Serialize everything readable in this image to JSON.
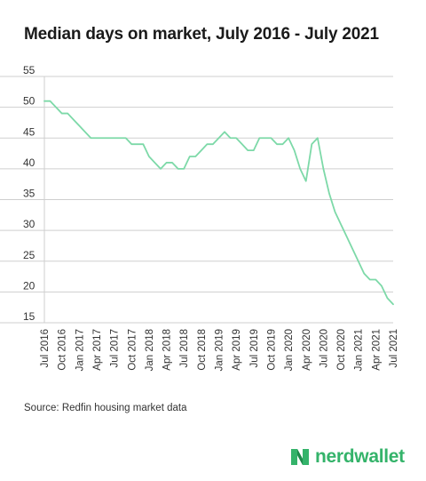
{
  "title": "Median days on market, July 2016 - July 2021",
  "source": "Source: Redfin housing market data",
  "brand": {
    "name": "nerdwallet",
    "color": "#34b36a"
  },
  "colors": {
    "line": "#7dd9a8",
    "grid": "#cfcfcf",
    "axis": "#333333"
  },
  "chart_data": {
    "type": "line",
    "title": "Median days on market, July 2016 - July 2021",
    "xlabel": "",
    "ylabel": "",
    "ylim": [
      15,
      55
    ],
    "y_ticks": [
      55,
      50,
      45,
      40,
      35,
      30,
      25,
      20,
      15
    ],
    "grid": true,
    "x_tick_labels": [
      "Jul 2016",
      "Oct 2016",
      "Jan 2017",
      "Apr 2017",
      "Jul 2017",
      "Oct 2017",
      "Jan 2018",
      "Apr 2018",
      "Jul 2018",
      "Oct 2018",
      "Jan 2019",
      "Apr 2019",
      "Jul 2019",
      "Oct 2019",
      "Jan 2020",
      "Apr 2020",
      "Jul 2020",
      "Oct 2020",
      "Jan 2021",
      "Apr 2021",
      "Jul 2021"
    ],
    "x": [
      "Jul 2016",
      "Aug 2016",
      "Sep 2016",
      "Oct 2016",
      "Nov 2016",
      "Dec 2016",
      "Jan 2017",
      "Feb 2017",
      "Mar 2017",
      "Apr 2017",
      "May 2017",
      "Jun 2017",
      "Jul 2017",
      "Aug 2017",
      "Sep 2017",
      "Oct 2017",
      "Nov 2017",
      "Dec 2017",
      "Jan 2018",
      "Feb 2018",
      "Mar 2018",
      "Apr 2018",
      "May 2018",
      "Jun 2018",
      "Jul 2018",
      "Aug 2018",
      "Sep 2018",
      "Oct 2018",
      "Nov 2018",
      "Dec 2018",
      "Jan 2019",
      "Feb 2019",
      "Mar 2019",
      "Apr 2019",
      "May 2019",
      "Jun 2019",
      "Jul 2019",
      "Aug 2019",
      "Sep 2019",
      "Oct 2019",
      "Nov 2019",
      "Dec 2019",
      "Jan 2020",
      "Feb 2020",
      "Mar 2020",
      "Apr 2020",
      "May 2020",
      "Jun 2020",
      "Jul 2020",
      "Aug 2020",
      "Sep 2020",
      "Oct 2020",
      "Nov 2020",
      "Dec 2020",
      "Jan 2021",
      "Feb 2021",
      "Mar 2021",
      "Apr 2021",
      "May 2021",
      "Jun 2021",
      "Jul 2021"
    ],
    "series": [
      {
        "values": [
          51,
          51,
          50,
          49,
          49,
          48,
          47,
          46,
          45,
          45,
          45,
          45,
          45,
          45,
          45,
          44,
          44,
          44,
          42,
          41,
          40,
          41,
          41,
          40,
          40,
          42,
          42,
          43,
          44,
          44,
          45,
          46,
          45,
          45,
          44,
          43,
          43,
          45,
          45,
          45,
          44,
          44,
          45,
          43,
          40,
          38,
          44,
          45,
          40,
          36,
          33,
          31,
          29,
          27,
          25,
          23,
          22,
          22,
          21,
          19,
          18
        ]
      }
    ]
  }
}
